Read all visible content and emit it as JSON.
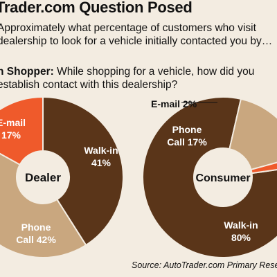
{
  "header": {
    "title": "Trader.com Question Posed",
    "question_dealer_line1": "Approximately what percentage of customers who visit",
    "question_dealer_line2": "dealership to look for a vehicle initially contacted you by…",
    "question_shopper_label": "n Shopper:",
    "question_shopper_line1": "While shopping for a vehicle, how did you",
    "question_shopper_line2": "establish contact with this dealership?"
  },
  "footer": {
    "source": "Source: AutoTrader.com Primary Rese"
  },
  "colors": {
    "walk_in": "#5a3519",
    "phone": "#c9a77f",
    "email": "#ef5a2b",
    "background": "#f3ece1"
  },
  "chart_data": [
    {
      "type": "pie",
      "center_label": "Dealer",
      "slices": [
        {
          "category": "Walk-in",
          "value": 41,
          "label_line1": "Walk-in",
          "label_line2": "41%"
        },
        {
          "category": "Phone Call",
          "value": 42,
          "label_line1": "Phone",
          "label_line2": "Call 42%"
        },
        {
          "category": "E-mail",
          "value": 17,
          "label_line1": "E-mail",
          "label_line2": "17%"
        }
      ]
    },
    {
      "type": "pie",
      "center_label": "Consumer",
      "slices": [
        {
          "category": "Walk-in",
          "value": 80,
          "label_line1": "Walk-in",
          "label_line2": "80%"
        },
        {
          "category": "Phone Call",
          "value": 17,
          "label_line1": "Phone",
          "label_line2": "Call 17%"
        },
        {
          "category": "E-mail",
          "value": 2,
          "label_line1": "E-mail 2%",
          "label_line2": ""
        }
      ]
    }
  ]
}
